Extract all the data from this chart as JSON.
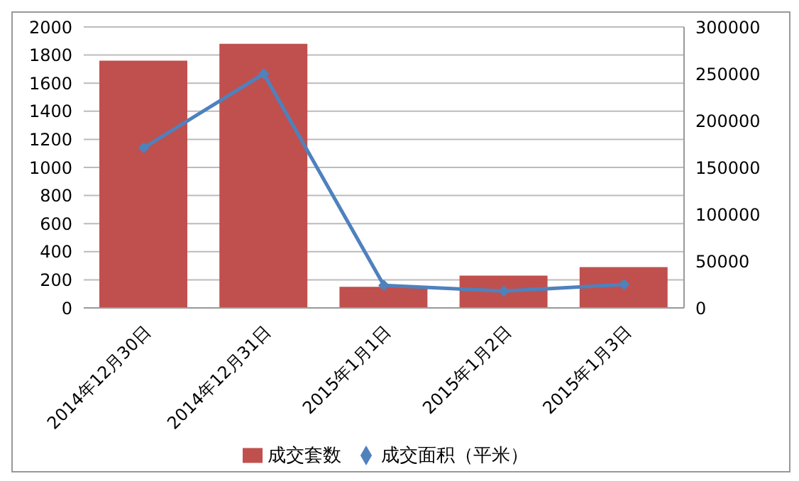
{
  "chart_data": {
    "type": "bar",
    "categories": [
      "2014年12月30日",
      "2014年12月31日",
      "2015年1月1日",
      "2015年1月2日",
      "2015年1月3日"
    ],
    "series": [
      {
        "name": "成交套数",
        "color": "#c0504d",
        "values": [
          1760,
          1880,
          150,
          230,
          290
        ]
      },
      {
        "name": "成交面积（平米）",
        "type": "line",
        "axis": "y2",
        "color": "#4f81bd",
        "marker": "diamond",
        "values": [
          171000,
          250000,
          24000,
          18000,
          25000
        ]
      }
    ],
    "ylim": [
      0,
      2000
    ],
    "yticks": [
      0,
      200,
      400,
      600,
      800,
      1000,
      1200,
      1400,
      1600,
      1800,
      2000
    ],
    "y2lim": [
      0,
      300000
    ],
    "y2ticks": [
      0,
      50000,
      100000,
      150000,
      200000,
      250000,
      300000
    ],
    "grid": "y",
    "legend": "bottom"
  }
}
